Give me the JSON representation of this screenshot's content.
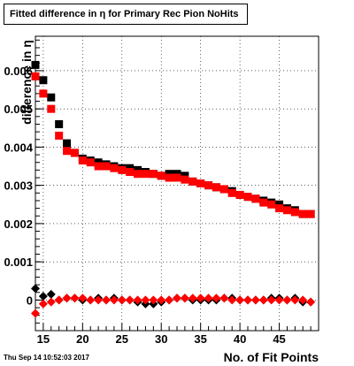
{
  "title": "Fitted difference in  η for Primary Rec Pion NoHits",
  "timestamp": "Thu Sep 14 10:52:03 2017",
  "chart_data": {
    "type": "scatter",
    "title": "Fitted difference in  η for Primary Rec Pion NoHits",
    "xlabel": "No. of Fit Points",
    "ylabel": "difference in  η",
    "xlim": [
      14,
      50
    ],
    "ylim": [
      -0.0008,
      0.0069
    ],
    "grid": true,
    "x_ticks": [
      15,
      20,
      25,
      30,
      35,
      40,
      45
    ],
    "y_ticks": [
      0,
      0.001,
      0.002,
      0.003,
      0.004,
      0.005,
      0.006
    ],
    "y_tick_labels": [
      "0",
      "0.001",
      "0.002",
      "0.003",
      "0.004",
      "0.005",
      "0.006"
    ],
    "series": [
      {
        "marker": "square",
        "color": "#000000",
        "x": [
          14,
          15,
          16,
          17,
          18,
          19,
          20,
          21,
          22,
          23,
          24,
          25,
          26,
          27,
          28,
          29,
          30,
          31,
          32,
          33,
          34,
          35,
          36,
          37,
          38,
          39,
          40,
          41,
          42,
          43,
          44,
          45,
          46,
          47,
          48,
          49
        ],
        "y": [
          0.00615,
          0.00575,
          0.0053,
          0.0046,
          0.0041,
          0.00385,
          0.0037,
          0.00365,
          0.0036,
          0.00355,
          0.0035,
          0.00345,
          0.00345,
          0.0034,
          0.00335,
          0.0033,
          0.00325,
          0.0033,
          0.0033,
          0.00325,
          0.0031,
          0.00305,
          0.003,
          0.00295,
          0.0029,
          0.00285,
          0.00275,
          0.0027,
          0.00265,
          0.0026,
          0.00255,
          0.0025,
          0.0024,
          0.00235,
          0.00225,
          0.00225
        ]
      },
      {
        "marker": "square",
        "color": "#ff0000",
        "x": [
          14,
          15,
          16,
          17,
          18,
          19,
          20,
          21,
          22,
          23,
          24,
          25,
          26,
          27,
          28,
          29,
          30,
          31,
          32,
          33,
          34,
          35,
          36,
          37,
          38,
          39,
          40,
          41,
          42,
          43,
          44,
          45,
          46,
          47,
          48,
          49
        ],
        "y": [
          0.00585,
          0.0054,
          0.005,
          0.0043,
          0.0039,
          0.00385,
          0.00365,
          0.0036,
          0.0035,
          0.0035,
          0.00345,
          0.0034,
          0.00335,
          0.0033,
          0.0033,
          0.0033,
          0.00325,
          0.0032,
          0.0032,
          0.00315,
          0.0031,
          0.00305,
          0.003,
          0.00295,
          0.0029,
          0.0028,
          0.00275,
          0.0027,
          0.00265,
          0.00255,
          0.0025,
          0.0024,
          0.00235,
          0.0023,
          0.00225,
          0.00225
        ]
      },
      {
        "marker": "diamond",
        "color": "#000000",
        "x": [
          14,
          15,
          16,
          17,
          18,
          19,
          20,
          21,
          22,
          23,
          24,
          25,
          26,
          27,
          28,
          29,
          30,
          31,
          32,
          33,
          34,
          35,
          36,
          37,
          38,
          39,
          40,
          41,
          42,
          43,
          44,
          45,
          46,
          47,
          48,
          49
        ],
        "y": [
          0.0003,
          0.0001,
          0.00015,
          0.0,
          5e-05,
          5e-05,
          0.0,
          0.0,
          5e-05,
          0.0,
          5e-05,
          0.0,
          0.0,
          -5e-05,
          -0.0001,
          -0.0001,
          -5e-05,
          0.0,
          5e-05,
          5e-05,
          0.0,
          0.0,
          0.0,
          0.0,
          5e-05,
          5e-05,
          0.0,
          0.0,
          0.0,
          0.0,
          5e-05,
          5e-05,
          0.0,
          5e-05,
          -5e-05,
          -5e-05
        ]
      },
      {
        "marker": "diamond",
        "color": "#ff0000",
        "x": [
          14,
          15,
          16,
          17,
          18,
          19,
          20,
          21,
          22,
          23,
          24,
          25,
          26,
          27,
          28,
          29,
          30,
          31,
          32,
          33,
          34,
          35,
          36,
          37,
          38,
          39,
          40,
          41,
          42,
          43,
          44,
          45,
          46,
          47,
          48,
          49
        ],
        "y": [
          -0.00035,
          -0.0001,
          -5e-05,
          0.0,
          5e-05,
          5e-05,
          5e-05,
          0.0,
          0.0,
          0.0,
          0.0,
          0.0,
          0.0,
          0.0,
          0.0,
          0.0,
          0.0,
          0.0,
          5e-05,
          5e-05,
          5e-05,
          5e-05,
          5e-05,
          5e-05,
          5e-05,
          0.0,
          0.0,
          0.0,
          0.0,
          0.0,
          0.0,
          0.0,
          0.0,
          0.0,
          0.0,
          -5e-05
        ]
      }
    ]
  }
}
